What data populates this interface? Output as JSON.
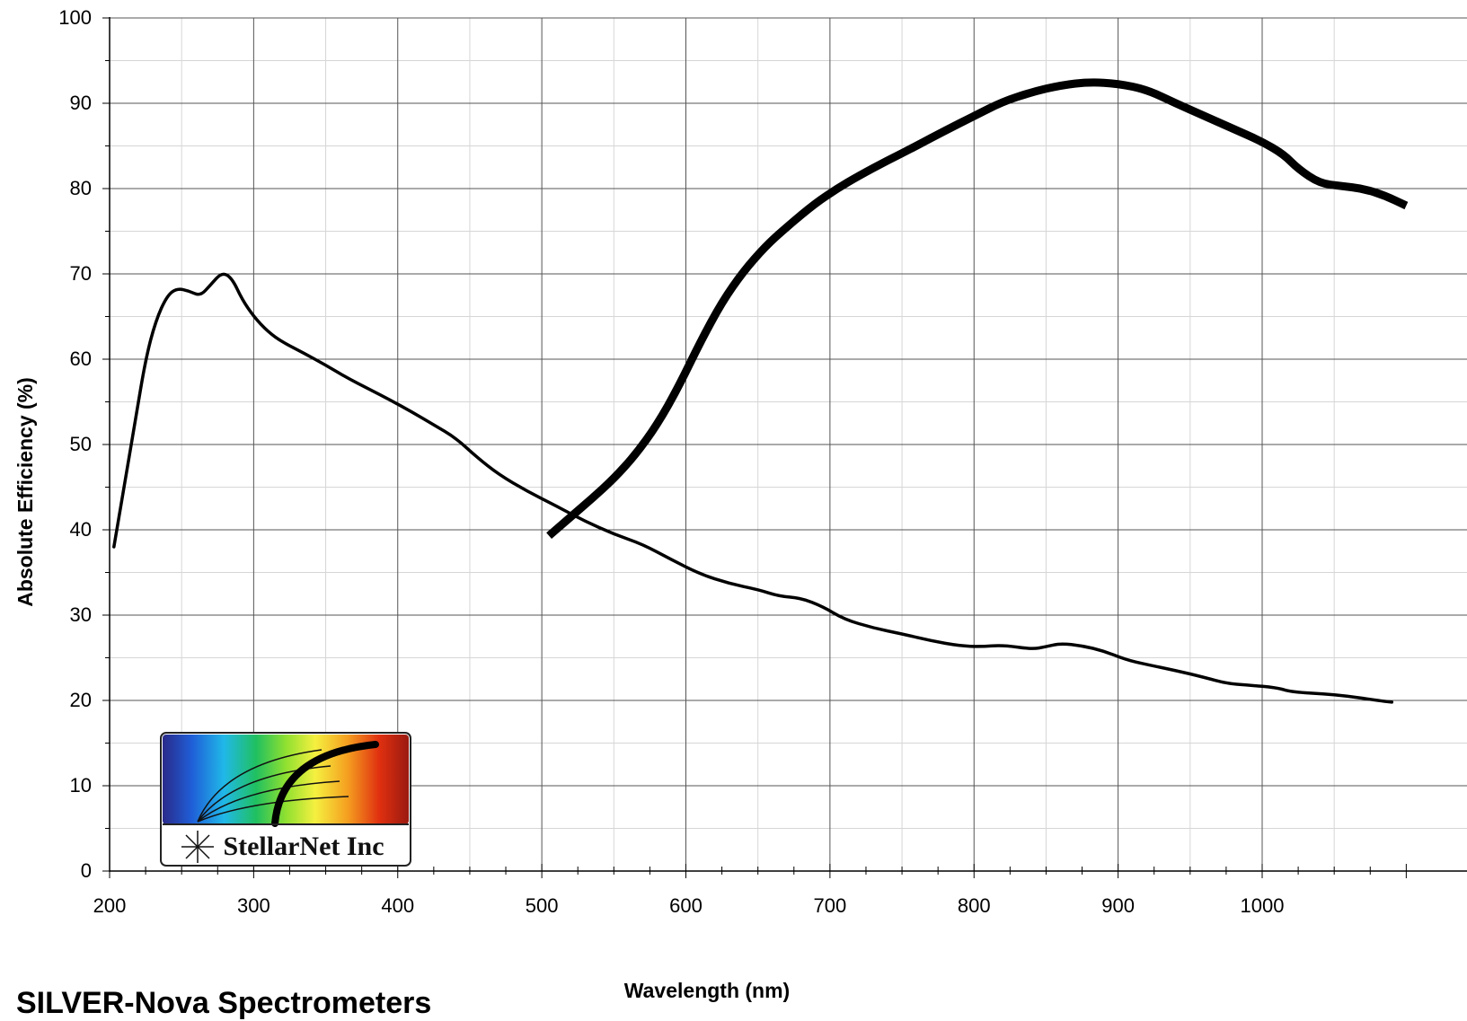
{
  "footer": {
    "title": "SILVER-Nova Spectrometers"
  },
  "logo": {
    "text": "StellarNet Inc"
  },
  "chart_data": {
    "type": "line",
    "title": "SILVER-Nova Spectrometers",
    "xlabel": "Wavelength (nm)",
    "ylabel": "Absolute Efficiency (%)",
    "xlim": [
      200,
      1100
    ],
    "ylim": [
      0,
      100
    ],
    "x_ticks": [
      200,
      300,
      400,
      500,
      600,
      700,
      800,
      900,
      1000
    ],
    "y_ticks": [
      0,
      10,
      20,
      30,
      40,
      50,
      60,
      70,
      80,
      90,
      100
    ],
    "grid": true,
    "series": [
      {
        "style": "thin",
        "points": [
          [
            203,
            38
          ],
          [
            210,
            45
          ],
          [
            218,
            53
          ],
          [
            225,
            60
          ],
          [
            232,
            64.5
          ],
          [
            240,
            67.5
          ],
          [
            247,
            68.3
          ],
          [
            255,
            68
          ],
          [
            263,
            67.4
          ],
          [
            270,
            68.7
          ],
          [
            278,
            70.2
          ],
          [
            285,
            69.5
          ],
          [
            292,
            67
          ],
          [
            300,
            65
          ],
          [
            310,
            63.2
          ],
          [
            320,
            62
          ],
          [
            335,
            60.7
          ],
          [
            350,
            59.3
          ],
          [
            365,
            57.8
          ],
          [
            380,
            56.5
          ],
          [
            395,
            55.2
          ],
          [
            410,
            53.8
          ],
          [
            425,
            52.3
          ],
          [
            440,
            50.8
          ],
          [
            455,
            48.5
          ],
          [
            470,
            46.5
          ],
          [
            490,
            44.5
          ],
          [
            510,
            42.8
          ],
          [
            530,
            41
          ],
          [
            550,
            39.5
          ],
          [
            570,
            38.3
          ],
          [
            590,
            36.5
          ],
          [
            610,
            34.8
          ],
          [
            630,
            33.7
          ],
          [
            650,
            33
          ],
          [
            665,
            32.2
          ],
          [
            680,
            32
          ],
          [
            695,
            31
          ],
          [
            710,
            29.5
          ],
          [
            730,
            28.5
          ],
          [
            750,
            27.8
          ],
          [
            770,
            27
          ],
          [
            790,
            26.4
          ],
          [
            805,
            26.3
          ],
          [
            820,
            26.5
          ],
          [
            840,
            26
          ],
          [
            850,
            26.3
          ],
          [
            860,
            26.7
          ],
          [
            875,
            26.4
          ],
          [
            890,
            25.8
          ],
          [
            905,
            24.8
          ],
          [
            920,
            24.2
          ],
          [
            940,
            23.5
          ],
          [
            960,
            22.7
          ],
          [
            975,
            22
          ],
          [
            990,
            21.8
          ],
          [
            1010,
            21.5
          ],
          [
            1020,
            21
          ],
          [
            1040,
            20.8
          ],
          [
            1060,
            20.5
          ],
          [
            1080,
            20
          ],
          [
            1090,
            19.8
          ]
        ]
      },
      {
        "style": "thick",
        "points": [
          [
            505,
            39.3
          ],
          [
            520,
            41.5
          ],
          [
            535,
            43.7
          ],
          [
            550,
            46
          ],
          [
            565,
            48.8
          ],
          [
            580,
            52.3
          ],
          [
            595,
            56.8
          ],
          [
            610,
            62
          ],
          [
            625,
            66.7
          ],
          [
            640,
            70.3
          ],
          [
            655,
            73.2
          ],
          [
            670,
            75.5
          ],
          [
            690,
            78.3
          ],
          [
            705,
            80
          ],
          [
            720,
            81.5
          ],
          [
            740,
            83.3
          ],
          [
            760,
            85
          ],
          [
            780,
            86.8
          ],
          [
            800,
            88.5
          ],
          [
            820,
            90.2
          ],
          [
            840,
            91.3
          ],
          [
            860,
            92.1
          ],
          [
            880,
            92.5
          ],
          [
            900,
            92.3
          ],
          [
            920,
            91.6
          ],
          [
            940,
            90
          ],
          [
            960,
            88.5
          ],
          [
            980,
            87
          ],
          [
            1000,
            85.5
          ],
          [
            1015,
            84
          ],
          [
            1025,
            82.3
          ],
          [
            1040,
            80.6
          ],
          [
            1055,
            80.3
          ],
          [
            1070,
            80
          ],
          [
            1085,
            79.2
          ],
          [
            1100,
            78
          ]
        ]
      }
    ]
  }
}
